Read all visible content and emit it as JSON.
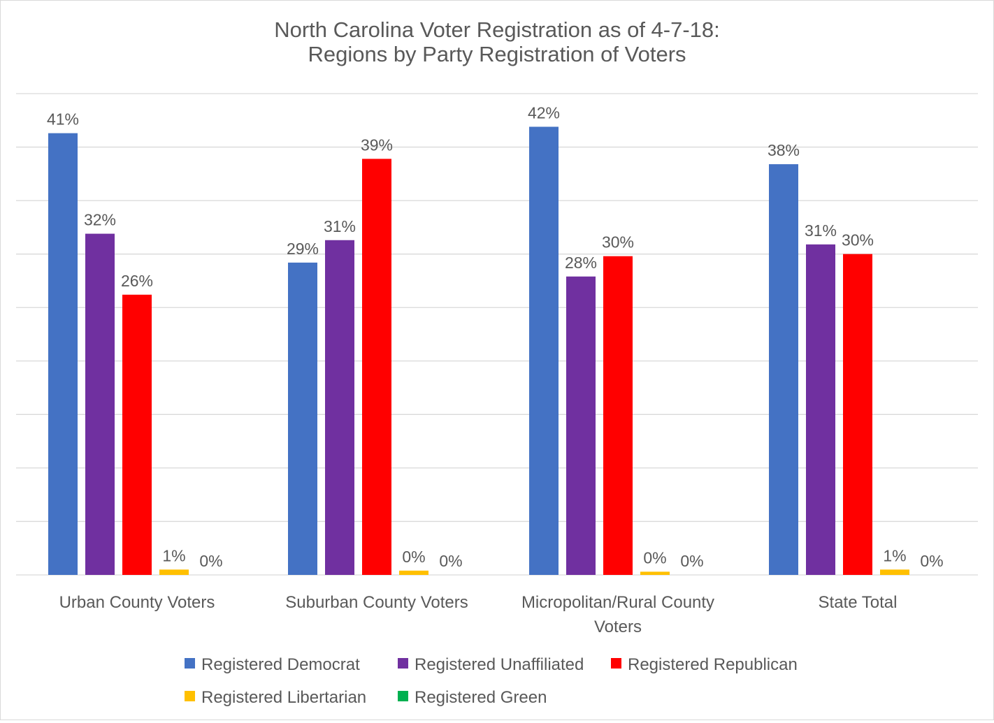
{
  "chart_data": {
    "type": "bar",
    "title": [
      "North Carolina Voter Registration as of 4-7-18:",
      "Regions by Party Registration of Voters"
    ],
    "categories": [
      [
        "Urban County Voters"
      ],
      [
        "Suburban County Voters"
      ],
      [
        "Micropolitan/Rural County",
        "Voters"
      ],
      [
        "State Total"
      ]
    ],
    "series": [
      {
        "name": "Registered Democrat",
        "color": "#4472C4",
        "values": [
          41.3,
          29.2,
          41.9,
          38.4
        ],
        "labels": [
          "41%",
          "29%",
          "42%",
          "38%"
        ]
      },
      {
        "name": "Registered Unaffiliated",
        "color": "#7030A0",
        "values": [
          31.9,
          31.3,
          27.9,
          30.9
        ],
        "labels": [
          "32%",
          "31%",
          "28%",
          "31%"
        ]
      },
      {
        "name": "Registered Republican",
        "color": "#FF0000",
        "values": [
          26.2,
          38.9,
          29.8,
          30.0
        ],
        "labels": [
          "26%",
          "39%",
          "30%",
          "30%"
        ]
      },
      {
        "name": "Registered Libertarian",
        "color": "#FFC000",
        "values": [
          0.5,
          0.4,
          0.3,
          0.5
        ],
        "labels": [
          "1%",
          "0%",
          "0%",
          "1%"
        ]
      },
      {
        "name": "Registered Green",
        "color": "#00B050",
        "values": [
          0,
          0,
          0,
          0
        ],
        "labels": [
          "0%",
          "0%",
          "0%",
          "0%"
        ]
      }
    ],
    "ylim": [
      0,
      45
    ],
    "grid_step": 5,
    "grid": true,
    "y_tick_labels_shown": false,
    "legend_position": "bottom",
    "xlabel": "",
    "ylabel": ""
  }
}
